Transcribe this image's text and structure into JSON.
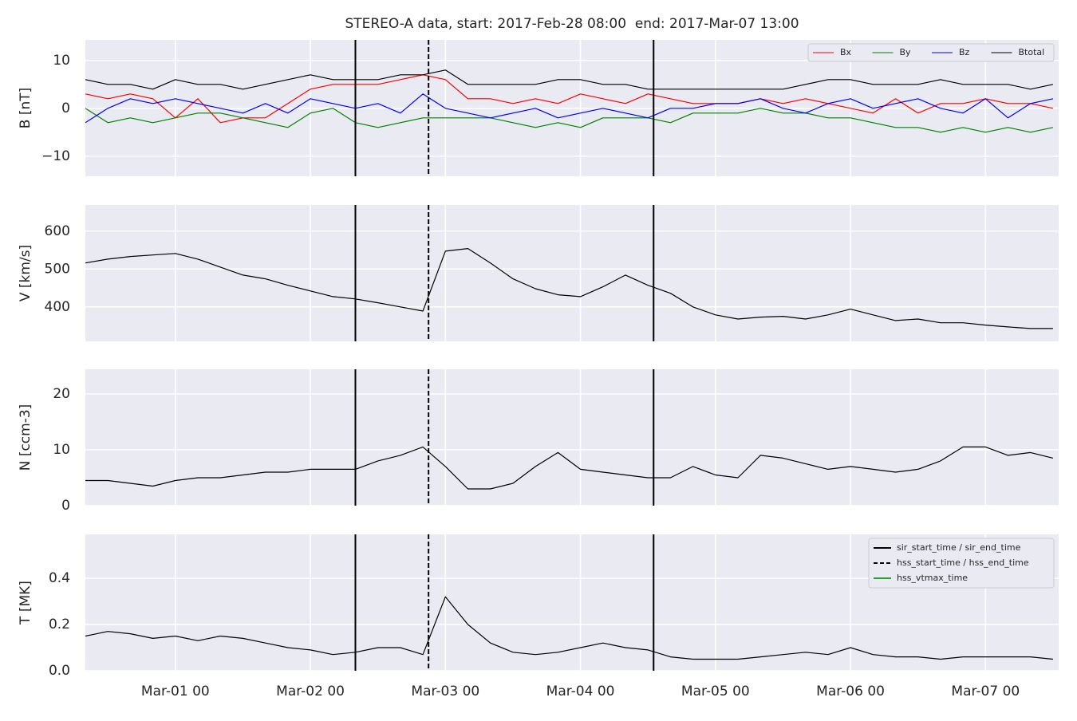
{
  "chart_data": {
    "type": "line",
    "title": "STEREO-A data, start: 2017-Feb-28 08:00  end: 2017-Mar-07 13:00",
    "x": [
      "Feb-28 08",
      "Feb-28 12",
      "Feb-28 16",
      "Feb-28 20",
      "Mar-01 00",
      "Mar-01 04",
      "Mar-01 08",
      "Mar-01 12",
      "Mar-01 16",
      "Mar-01 20",
      "Mar-02 00",
      "Mar-02 04",
      "Mar-02 08",
      "Mar-02 12",
      "Mar-02 16",
      "Mar-02 20",
      "Mar-03 00",
      "Mar-03 04",
      "Mar-03 08",
      "Mar-03 12",
      "Mar-03 16",
      "Mar-03 20",
      "Mar-04 00",
      "Mar-04 04",
      "Mar-04 08",
      "Mar-04 12",
      "Mar-04 16",
      "Mar-04 20",
      "Mar-05 00",
      "Mar-05 04",
      "Mar-05 08",
      "Mar-05 12",
      "Mar-05 16",
      "Mar-05 20",
      "Mar-06 00",
      "Mar-06 04",
      "Mar-06 08",
      "Mar-06 12",
      "Mar-06 16",
      "Mar-06 20",
      "Mar-07 00",
      "Mar-07 04",
      "Mar-07 08",
      "Mar-07 12"
    ],
    "xlim": [
      "Feb-28 08",
      "Mar-07 13"
    ],
    "xticks": [
      "Mar-01 00",
      "Mar-02 00",
      "Mar-03 00",
      "Mar-04 00",
      "Mar-05 00",
      "Mar-06 00",
      "Mar-07 00"
    ],
    "grid": true,
    "events": [
      {
        "name": "sir_start_time / sir_end_time",
        "color": "#000000",
        "dashed": false,
        "times": [
          "Mar-02 08",
          "Mar-04 13"
        ]
      },
      {
        "name": "hss_start_time / hss_end_time",
        "color": "#000000",
        "dashed": true,
        "times": [
          "Mar-02 21"
        ]
      },
      {
        "name": "hss_vtmax_time",
        "color": "#2ca02c",
        "dashed": false,
        "times": []
      }
    ],
    "panels": [
      {
        "ylabel": "B [nT]",
        "ylim": [
          -14.2,
          14.3
        ],
        "yticks": [
          {
            "value": -10,
            "label": "−10"
          },
          0,
          10
        ],
        "legend": "upper right",
        "series": [
          {
            "name": "Bx",
            "color": "#ff0000",
            "values": [
              3,
              2,
              3,
              2,
              -2,
              2,
              -3,
              -2,
              -2,
              1,
              4,
              5,
              5,
              5,
              6,
              7,
              6,
              2,
              2,
              1,
              2,
              1,
              3,
              2,
              1,
              3,
              2,
              1,
              1,
              1,
              2,
              1,
              2,
              1,
              0,
              -1,
              2,
              -1,
              1,
              1,
              2,
              1,
              1,
              0
            ]
          },
          {
            "name": "By",
            "color": "#008000",
            "values": [
              0,
              -3,
              -2,
              -3,
              -2,
              -1,
              -1,
              -2,
              -3,
              -4,
              -1,
              0,
              -3,
              -4,
              -3,
              -2,
              -2,
              -2,
              -2,
              -3,
              -4,
              -3,
              -4,
              -2,
              -2,
              -2,
              -3,
              -1,
              -1,
              -1,
              0,
              -1,
              -1,
              -2,
              -2,
              -3,
              -4,
              -4,
              -5,
              -4,
              -5,
              -4,
              -5,
              -4
            ]
          },
          {
            "name": "Bz",
            "color": "#0000ff",
            "values": [
              -3,
              0,
              2,
              1,
              2,
              1,
              0,
              -1,
              1,
              -1,
              2,
              1,
              0,
              1,
              -1,
              3,
              0,
              -1,
              -2,
              -1,
              0,
              -2,
              -1,
              0,
              -1,
              -2,
              0,
              0,
              1,
              1,
              2,
              0,
              -1,
              1,
              2,
              0,
              1,
              2,
              0,
              -1,
              2,
              -2,
              1,
              2
            ]
          },
          {
            "name": "Btotal",
            "color": "#000000",
            "values": [
              6,
              5,
              5,
              4,
              6,
              5,
              5,
              4,
              5,
              6,
              7,
              6,
              6,
              6,
              7,
              7,
              8,
              5,
              5,
              5,
              5,
              6,
              6,
              5,
              5,
              4,
              4,
              4,
              4,
              4,
              4,
              4,
              5,
              6,
              6,
              5,
              5,
              5,
              6,
              5,
              5,
              5,
              4,
              5
            ]
          }
        ]
      },
      {
        "ylabel": "V [km/s]",
        "ylim": [
          309,
          669
        ],
        "yticks": [
          400,
          500,
          600
        ],
        "series": [
          {
            "color": "#000000",
            "values": [
              516,
              526,
              533,
              537,
              541,
              526,
              505,
              484,
              474,
              457,
              442,
              427,
              421,
              411,
              400,
              389,
              547,
              554,
              516,
              474,
              448,
              432,
              427,
              453,
              484,
              457,
              436,
              400,
              379,
              368,
              373,
              375,
              368,
              379,
              394,
              379,
              364,
              368,
              358,
              358,
              352,
              347,
              343,
              343
            ]
          }
        ]
      },
      {
        "ylabel": "N [ccm-3]",
        "ylim": [
          0,
          24.4
        ],
        "yticks": [
          0,
          10,
          20
        ],
        "series": [
          {
            "color": "#000000",
            "values": [
              4.5,
              4.5,
              4,
              3.5,
              4.5,
              5,
              5,
              5.5,
              6,
              6,
              6.5,
              6.5,
              6.5,
              8,
              9,
              10.5,
              7,
              3,
              3,
              4,
              7,
              9.5,
              6.5,
              6,
              5.5,
              5,
              5,
              7,
              5.5,
              5,
              9,
              8.5,
              7.5,
              6.5,
              7,
              6.5,
              6,
              6.5,
              8,
              10.5,
              10.5,
              9,
              9.5,
              8.5
            ]
          }
        ]
      },
      {
        "ylabel": "T [MK]",
        "ylim": [
          0,
          0.59
        ],
        "yticks": [
          {
            "value": 0,
            "label": "0.0"
          },
          0.2,
          0.4
        ],
        "event_legend": "upper right",
        "series": [
          {
            "color": "#000000",
            "values": [
              0.15,
              0.17,
              0.16,
              0.14,
              0.15,
              0.13,
              0.15,
              0.14,
              0.12,
              0.1,
              0.09,
              0.07,
              0.08,
              0.1,
              0.1,
              0.07,
              0.32,
              0.2,
              0.12,
              0.08,
              0.07,
              0.08,
              0.1,
              0.12,
              0.1,
              0.09,
              0.06,
              0.05,
              0.05,
              0.05,
              0.06,
              0.07,
              0.08,
              0.07,
              0.1,
              0.07,
              0.06,
              0.06,
              0.05,
              0.06,
              0.06,
              0.06,
              0.06,
              0.05
            ]
          }
        ]
      }
    ]
  }
}
